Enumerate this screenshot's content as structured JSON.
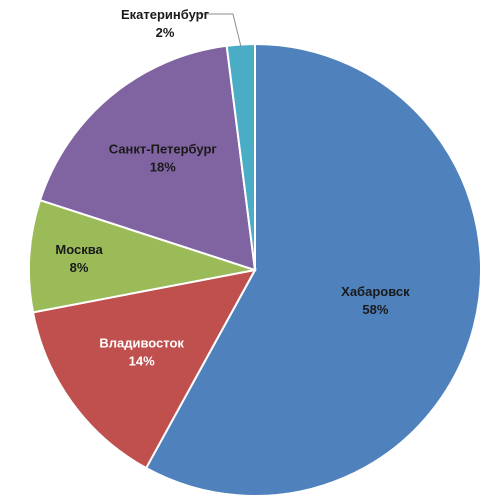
{
  "chart_data": {
    "type": "pie",
    "slices": [
      {
        "label": "Хабаровск",
        "value": 58,
        "value_label": "58%",
        "color": "#4f81bd",
        "label_color": "#1a1a1a"
      },
      {
        "label": "Владивосток",
        "value": 14,
        "value_label": "14%",
        "color": "#c0504d",
        "label_color": "#ffffff"
      },
      {
        "label": "Москва",
        "value": 8,
        "value_label": "8%",
        "color": "#9bbb59",
        "label_color": "#1a1a1a"
      },
      {
        "label": "Санкт-Петербург",
        "value": 18,
        "value_label": "18%",
        "color": "#8064a2",
        "label_color": "#1a1a1a"
      },
      {
        "label": "Екатеринбург",
        "value": 2,
        "value_label": "2%",
        "color": "#4bacc6",
        "label_color": "#1a1a1a"
      }
    ],
    "start_angle_deg": 0,
    "direction": "clockwise",
    "legend": "none"
  }
}
